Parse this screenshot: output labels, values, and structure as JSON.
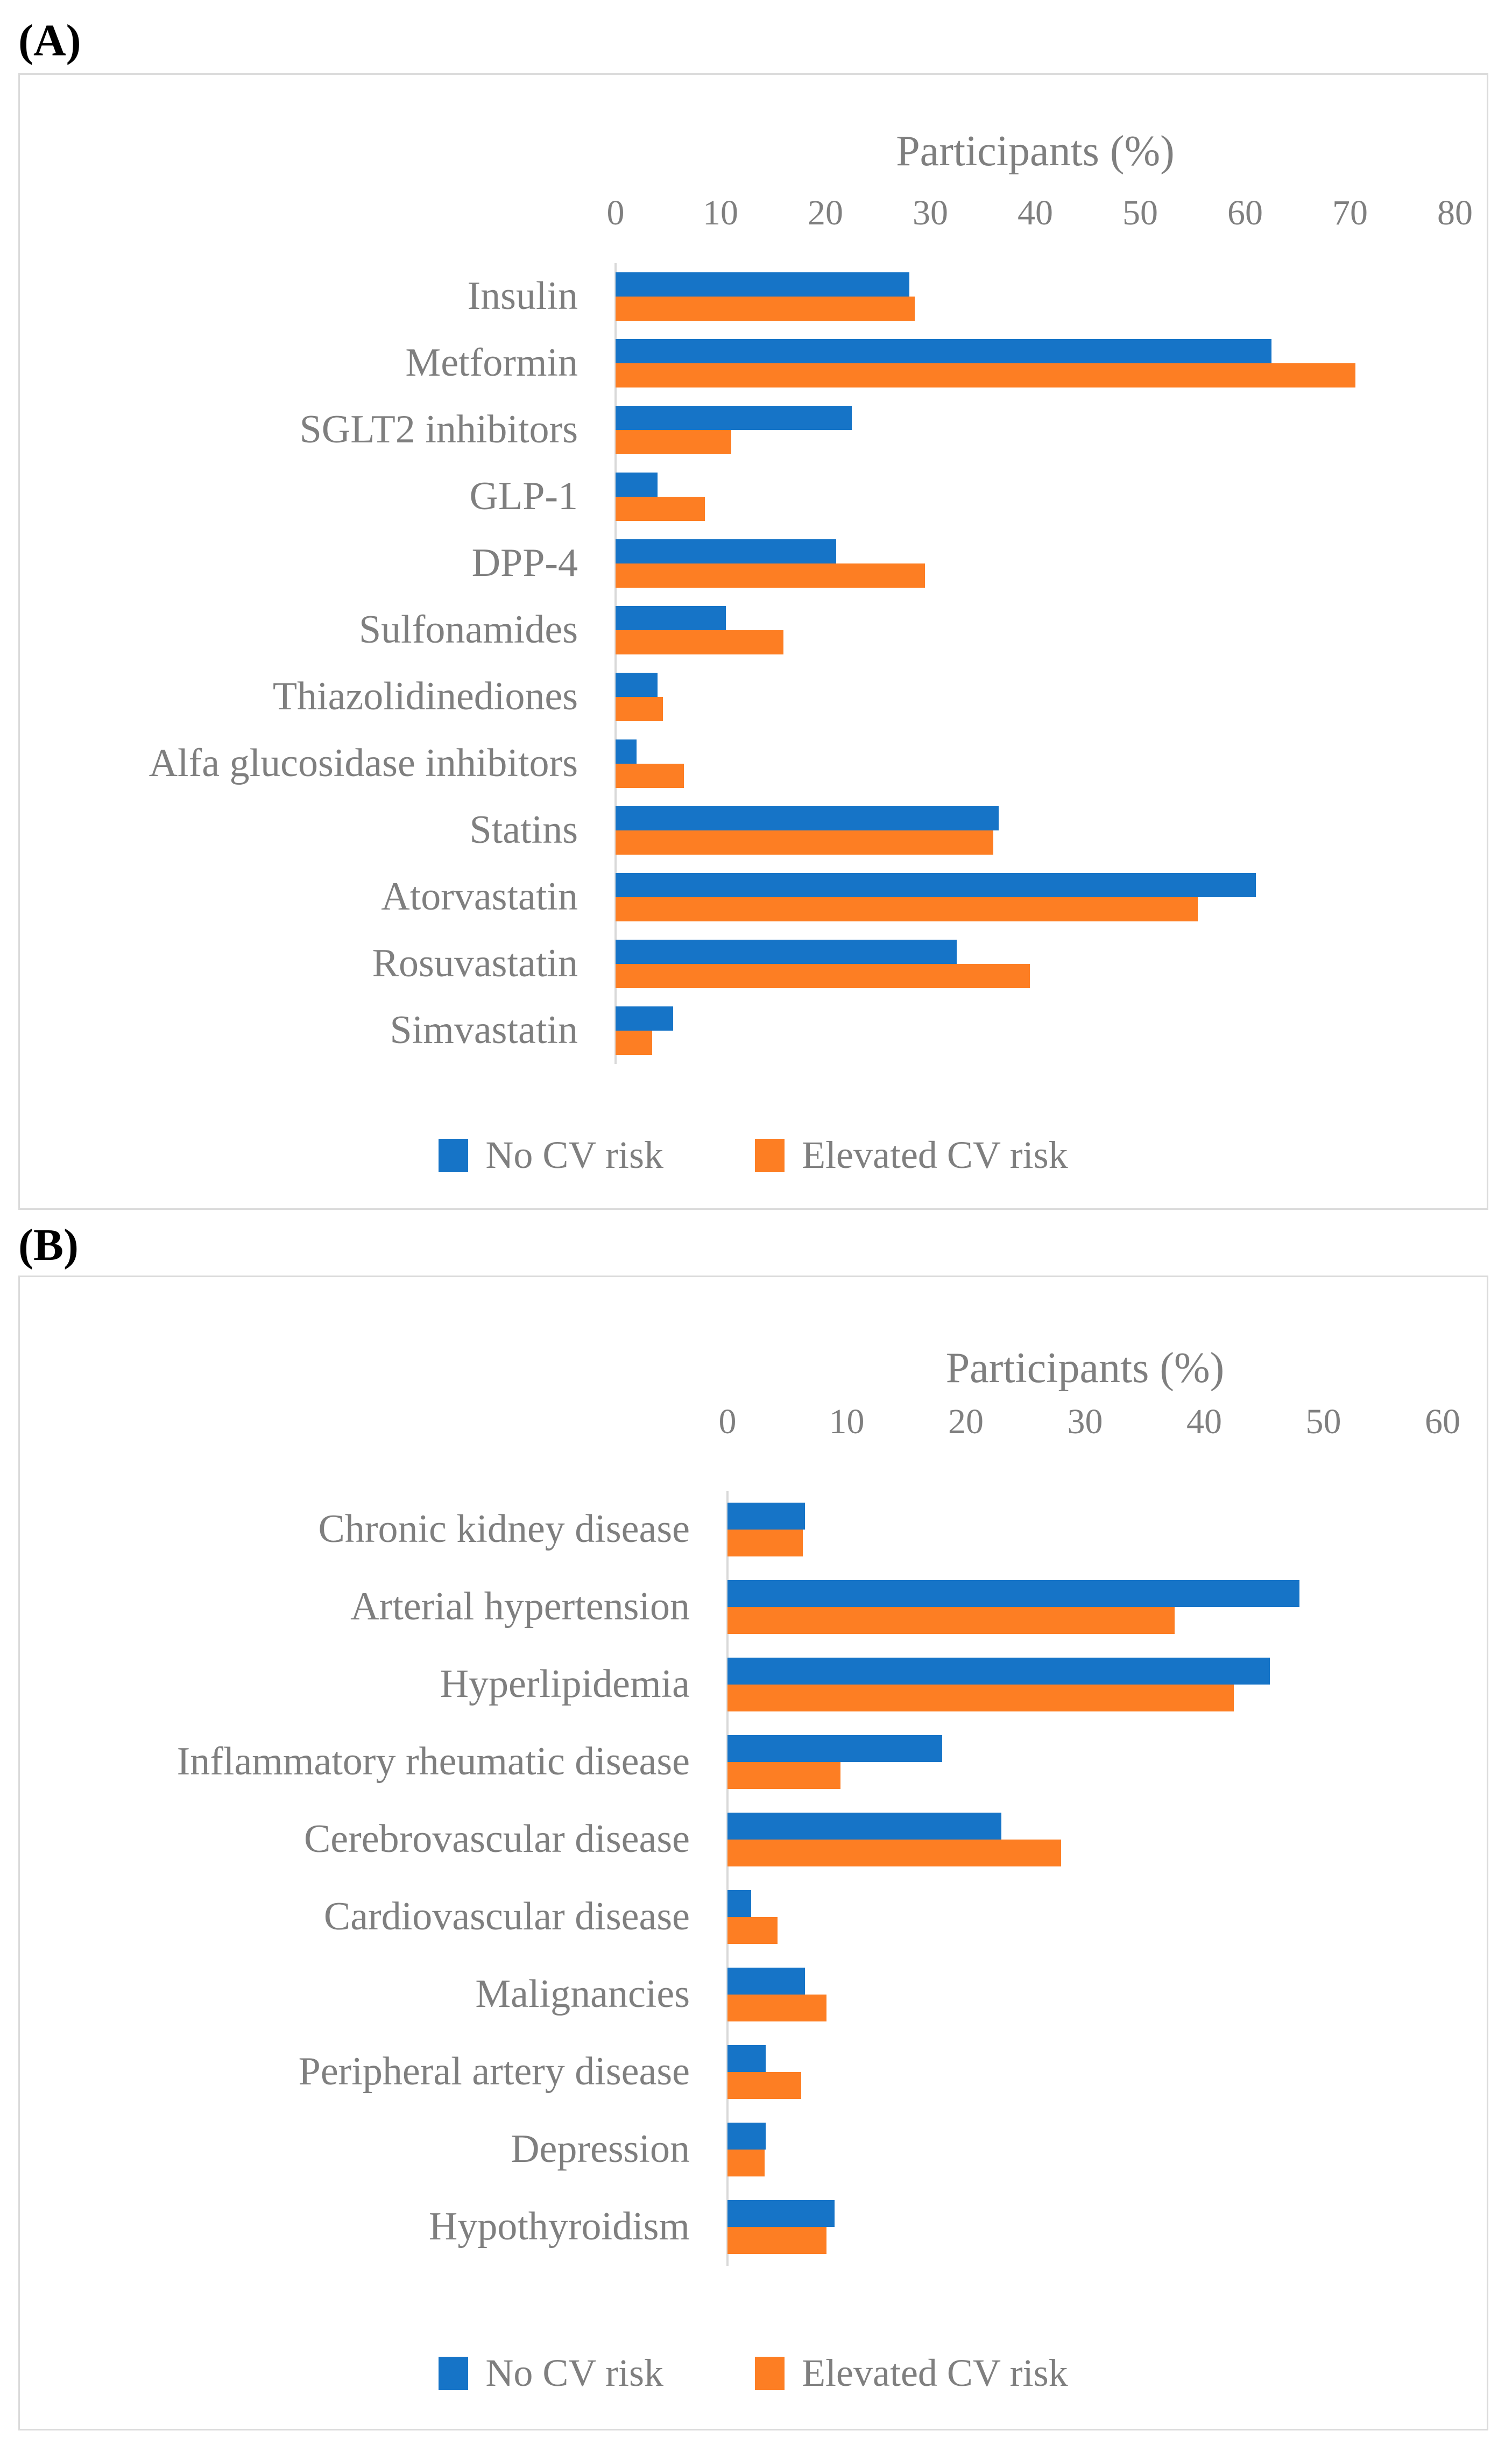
{
  "colors": {
    "no_cv_risk_blue": "#1674C7",
    "elevated_cv_risk_orange": "#FD7E23",
    "text_gray": "#7F7F7F",
    "panel_border_gray": "#DBDBDB",
    "axis_line_gray": "#D9D9D9"
  },
  "chart_data": [
    {
      "panel_label": "(A)",
      "type": "bar",
      "orientation": "horizontal",
      "title": "Participants (%)",
      "xlabel": "Participants (%)",
      "xlim": [
        0,
        80
      ],
      "xticks": [
        0,
        10,
        20,
        30,
        40,
        50,
        60,
        70,
        80
      ],
      "grid": false,
      "legend_position": "bottom",
      "categories": [
        "Insulin",
        "Metformin",
        "SGLT2 inhibitors",
        "GLP-1",
        "DPP-4",
        "Sulfonamides",
        "Thiazolidinediones",
        "Alfa glucosidase inhibitors",
        "Statins",
        "Atorvastatin",
        "Rosuvastatin",
        "Simvastatin"
      ],
      "series": [
        {
          "name": "No CV risk",
          "color": "#1674C7",
          "values": [
            28,
            62.5,
            22.5,
            4,
            21,
            10.5,
            4,
            2,
            36.5,
            61,
            32.5,
            5.5
          ]
        },
        {
          "name": "Elevated CV risk",
          "color": "#FD7E23",
          "values": [
            28.5,
            70.5,
            11,
            8.5,
            29.5,
            16,
            4.5,
            6.5,
            36,
            55.5,
            39.5,
            3.5
          ]
        }
      ]
    },
    {
      "panel_label": "(B)",
      "type": "bar",
      "orientation": "horizontal",
      "title": "Participants (%)",
      "xlabel": "Participants (%)",
      "xlim": [
        0,
        60
      ],
      "xticks": [
        0,
        10,
        20,
        30,
        40,
        50,
        60
      ],
      "grid": false,
      "legend_position": "bottom",
      "categories": [
        "Chronic kidney disease",
        "Arterial hypertension",
        "Hyperlipidemia",
        "Inflammatory rheumatic disease",
        "Cerebrovascular disease",
        "Cardiovascular disease",
        "Malignancies",
        "Peripheral artery disease",
        "Depression",
        "Hypothyroidism"
      ],
      "series": [
        {
          "name": "No CV risk",
          "color": "#1674C7",
          "values": [
            6.5,
            48,
            45.5,
            18,
            23,
            2,
            6.5,
            3.2,
            3.2,
            9
          ]
        },
        {
          "name": "Elevated CV risk",
          "color": "#FD7E23",
          "values": [
            6.3,
            37.5,
            42.5,
            9.5,
            28,
            4.2,
            8.3,
            6.2,
            3.1,
            8.3
          ]
        }
      ]
    }
  ]
}
